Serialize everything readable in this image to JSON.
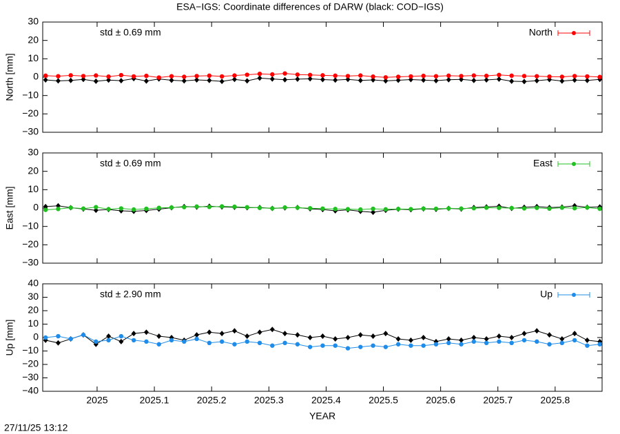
{
  "title": "ESA−IGS: Coordinate differences of DARW (black: COD−IGS)",
  "timestamp": "27/11/25 13:12",
  "chart_data": [
    {
      "type": "line",
      "ylabel": "North [mm]",
      "annotation": "std ± 0.69 mm",
      "annotation_color": "#ff0000",
      "xlim": [
        2024.905,
        2025.882
      ],
      "ylim": [
        -30,
        30
      ],
      "yticks": [
        {
          "value": -30,
          "label": "−30"
        },
        {
          "value": -20,
          "label": "−20"
        },
        {
          "value": -10,
          "label": "−10"
        },
        0,
        10,
        20,
        30
      ],
      "xticks": [
        2025,
        2025.1,
        2025.2,
        2025.3,
        2025.4,
        2025.5,
        2025.6,
        2025.7,
        2025.8
      ],
      "show_xtick_labels": false,
      "legend": "top-right",
      "x": [
        2024.91,
        2024.932,
        2024.954,
        2024.976,
        2024.998,
        2025.02,
        2025.042,
        2025.064,
        2025.086,
        2025.108,
        2025.13,
        2025.152,
        2025.174,
        2025.196,
        2025.218,
        2025.24,
        2025.262,
        2025.284,
        2025.306,
        2025.328,
        2025.35,
        2025.372,
        2025.394,
        2025.416,
        2025.438,
        2025.46,
        2025.482,
        2025.504,
        2025.526,
        2025.548,
        2025.57,
        2025.592,
        2025.614,
        2025.636,
        2025.658,
        2025.68,
        2025.702,
        2025.724,
        2025.746,
        2025.768,
        2025.79,
        2025.812,
        2025.834,
        2025.856,
        2025.878
      ],
      "series": [
        {
          "color": "#000000",
          "values": [
            -1.5,
            -2,
            -1.8,
            -1.2,
            -2.2,
            -1.6,
            -1.9,
            -0.8,
            -2.1,
            -1,
            -1.7,
            -2,
            -1.5,
            -1.8,
            -2.3,
            -1.2,
            -2,
            -0.5,
            -1,
            -1.4,
            -1.1,
            -0.9,
            -1.3,
            -1.6,
            -1.2,
            -1.8,
            -1.5,
            -2,
            -1.7,
            -1.3,
            -1.6,
            -1.9,
            -1.4,
            -1.2,
            -1.8,
            -1.5,
            -1.1,
            -2.2,
            -2.4,
            -1.9,
            -1.3,
            -2.1,
            -1.6,
            -1.8,
            -1.2
          ]
        },
        {
          "name": "North",
          "color": "#ff0000",
          "values": [
            0.8,
            0.5,
            1,
            0.6,
            0.9,
            0.3,
            1.1,
            0.4,
            0.7,
            -0.2,
            0.5,
            0.2,
            0.6,
            0.8,
            0.4,
            0.9,
            1.3,
            1.8,
            1.5,
            2,
            1.4,
            1.2,
            1,
            0.8,
            0.6,
            0.9,
            0.3,
            -0.1,
            0.2,
            0.4,
            0.7,
            0.5,
            0.8,
            0.6,
            0.9,
            0.7,
            1.2,
            0.8,
            0.6,
            0.5,
            0.3,
            0.2,
            0.6,
            0.4,
            0.1
          ]
        }
      ]
    },
    {
      "type": "line",
      "ylabel": "East [mm]",
      "annotation": "std ± 0.69 mm",
      "annotation_color": "#20c020",
      "xlim": [
        2024.905,
        2025.882
      ],
      "ylim": [
        -30,
        30
      ],
      "yticks": [
        {
          "value": -30,
          "label": "−30"
        },
        {
          "value": -20,
          "label": "−20"
        },
        {
          "value": -10,
          "label": "−10"
        },
        0,
        10,
        20,
        30
      ],
      "xticks": [
        2025,
        2025.1,
        2025.2,
        2025.3,
        2025.4,
        2025.5,
        2025.6,
        2025.7,
        2025.8
      ],
      "show_xtick_labels": false,
      "legend": "top-right",
      "x": [
        2024.91,
        2024.932,
        2024.954,
        2024.976,
        2024.998,
        2025.02,
        2025.042,
        2025.064,
        2025.086,
        2025.108,
        2025.13,
        2025.152,
        2025.174,
        2025.196,
        2025.218,
        2025.24,
        2025.262,
        2025.284,
        2025.306,
        2025.328,
        2025.35,
        2025.372,
        2025.394,
        2025.416,
        2025.438,
        2025.46,
        2025.482,
        2025.504,
        2025.526,
        2025.548,
        2025.57,
        2025.592,
        2025.614,
        2025.636,
        2025.658,
        2025.68,
        2025.702,
        2025.724,
        2025.746,
        2025.768,
        2025.79,
        2025.812,
        2025.834,
        2025.856,
        2025.878
      ],
      "series": [
        {
          "color": "#000000",
          "values": [
            0.8,
            1.2,
            0.2,
            -0.5,
            -1.2,
            -0.8,
            -1.5,
            -1.8,
            -1.3,
            -0.6,
            0.2,
            0.8,
            0.5,
            1,
            0.6,
            0.4,
            0.2,
            0.3,
            -0.2,
            0.1,
            0.3,
            -0.4,
            -0.8,
            -1.5,
            -1,
            -1.8,
            -2.3,
            -1.2,
            -0.6,
            -0.9,
            -0.4,
            -0.7,
            -0.2,
            -0.5,
            0.3,
            0.6,
            1,
            -0.2,
            0.4,
            0.8,
            0.3,
            0.5,
            1.2,
            0.4,
            0.6
          ]
        },
        {
          "name": "East",
          "color": "#20c020",
          "values": [
            -1,
            -0.5,
            0.2,
            -0.3,
            0.5,
            -0.6,
            -0.2,
            -0.8,
            -0.4,
            0.1,
            0.3,
            0.5,
            0.8,
            0.6,
            0.9,
            0.7,
            0.4,
            0.1,
            -0.2,
            0.3,
            0.2,
            -0.1,
            -0.3,
            -0.5,
            -0.6,
            -0.8,
            -0.4,
            -0.7,
            -0.5,
            -0.6,
            -0.3,
            -0.4,
            -0.2,
            -0.3,
            -0.1,
            0.2,
            0.1,
            0,
            -0.2,
            0.1,
            -0.3,
            0.2,
            -0.1,
            0.3,
            -0.4
          ]
        }
      ]
    },
    {
      "type": "line",
      "ylabel": "Up [mm]",
      "xlabel": "YEAR",
      "annotation": "std ± 2.90 mm",
      "annotation_color": "#1e8ce8",
      "xlim": [
        2024.905,
        2025.882
      ],
      "ylim": [
        -40,
        40
      ],
      "yticks": [
        {
          "value": -40,
          "label": "−40"
        },
        {
          "value": -30,
          "label": "−30"
        },
        {
          "value": -20,
          "label": "−20"
        },
        {
          "value": -10,
          "label": "−10"
        },
        0,
        10,
        20,
        30,
        40
      ],
      "xticks": [
        2025,
        2025.1,
        2025.2,
        2025.3,
        2025.4,
        2025.5,
        2025.6,
        2025.7,
        2025.8
      ],
      "show_xtick_labels": true,
      "legend": "top-right",
      "x": [
        2024.91,
        2024.932,
        2024.954,
        2024.976,
        2024.998,
        2025.02,
        2025.042,
        2025.064,
        2025.086,
        2025.108,
        2025.13,
        2025.152,
        2025.174,
        2025.196,
        2025.218,
        2025.24,
        2025.262,
        2025.284,
        2025.306,
        2025.328,
        2025.35,
        2025.372,
        2025.394,
        2025.416,
        2025.438,
        2025.46,
        2025.482,
        2025.504,
        2025.526,
        2025.548,
        2025.57,
        2025.592,
        2025.614,
        2025.636,
        2025.658,
        2025.68,
        2025.702,
        2025.724,
        2025.746,
        2025.768,
        2025.79,
        2025.812,
        2025.834,
        2025.856,
        2025.878
      ],
      "series": [
        {
          "color": "#000000",
          "values": [
            -2,
            -4,
            -1,
            2,
            -5,
            1,
            -3,
            3,
            4,
            1,
            0,
            -2,
            2,
            4,
            3,
            5,
            1,
            4,
            6,
            3,
            2,
            0,
            1,
            -1,
            0,
            2,
            1,
            3,
            -1,
            -2,
            0,
            -3,
            -1,
            -2,
            0,
            -1,
            1,
            0,
            3,
            5,
            2,
            -1,
            3,
            -2,
            -3
          ]
        },
        {
          "name": "Up",
          "color": "#1e8ce8",
          "values": [
            0,
            1,
            -1,
            2,
            -3,
            -2,
            1,
            -2,
            -3,
            -5,
            -2,
            -3,
            -1,
            -4,
            -3,
            -5,
            -3,
            -4,
            -6,
            -4,
            -5,
            -7,
            -6,
            -6,
            -8,
            -7,
            -6,
            -7,
            -5,
            -6,
            -6,
            -5,
            -4,
            -5,
            -3,
            -4,
            -3,
            -4,
            -2,
            -3,
            -5,
            -4,
            -2,
            -6,
            -5
          ]
        }
      ]
    }
  ]
}
